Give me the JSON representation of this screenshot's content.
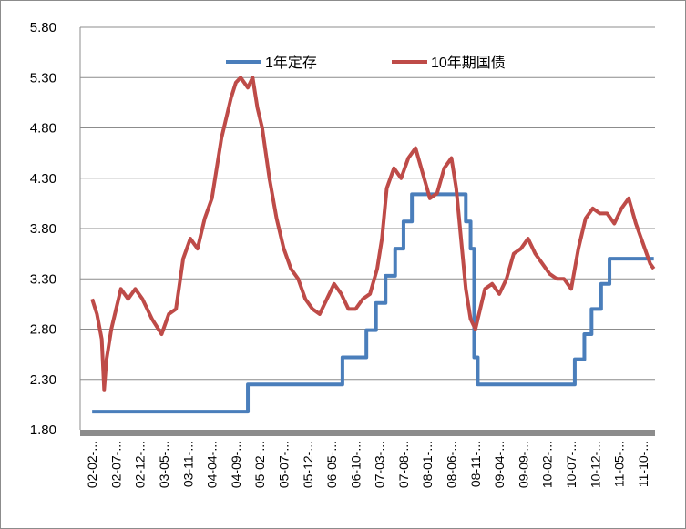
{
  "chart_data": {
    "type": "line",
    "title": "",
    "xlabel": "",
    "ylabel": "",
    "ylim": [
      1.8,
      5.8
    ],
    "y_ticks": [
      "1.80",
      "2.30",
      "2.80",
      "3.30",
      "3.80",
      "4.30",
      "4.80",
      "5.30",
      "5.80"
    ],
    "x_ticks": [
      "02-02-...",
      "02-07-...",
      "02-12-...",
      "03-05-...",
      "03-11-...",
      "04-04-...",
      "04-09-...",
      "05-02-...",
      "05-07-...",
      "05-12-...",
      "06-05-...",
      "06-10-...",
      "07-03-...",
      "07-08-...",
      "08-01-...",
      "08-06-...",
      "08-11-...",
      "09-04-...",
      "09-09-...",
      "10-02-...",
      "10-07-...",
      "10-12-...",
      "11-05-...",
      "11-10-..."
    ],
    "grid": "horizontal",
    "legend_position": "top",
    "series": [
      {
        "name": "1年定存",
        "color": "#4a7ebb",
        "step": true,
        "x": [
          0,
          6.5,
          10.45,
          11.45,
          11.85,
          12.25,
          12.65,
          13.0,
          13.35,
          13.7,
          14.7,
          15.6,
          15.8,
          15.95,
          16.1,
          20.15,
          20.55,
          20.85,
          21.25,
          21.6,
          22.4,
          23.45
        ],
        "values": [
          1.98,
          2.25,
          2.52,
          2.79,
          3.06,
          3.33,
          3.6,
          3.87,
          4.14,
          4.14,
          4.14,
          3.87,
          3.6,
          2.52,
          2.25,
          2.5,
          2.75,
          3.0,
          3.25,
          3.5,
          3.5,
          3.5
        ]
      },
      {
        "name": "10年期国债",
        "color": "#be4b48",
        "x": [
          0,
          0.2,
          0.4,
          0.5,
          0.6,
          0.8,
          1.0,
          1.2,
          1.5,
          1.8,
          2.1,
          2.5,
          2.9,
          3.2,
          3.5,
          3.8,
          4.1,
          4.4,
          4.7,
          5.0,
          5.2,
          5.4,
          5.6,
          5.8,
          6.0,
          6.2,
          6.5,
          6.7,
          6.9,
          7.1,
          7.4,
          7.7,
          8.0,
          8.3,
          8.6,
          8.9,
          9.2,
          9.5,
          9.8,
          10.1,
          10.4,
          10.7,
          11.0,
          11.3,
          11.6,
          11.9,
          12.1,
          12.3,
          12.6,
          12.9,
          13.2,
          13.5,
          13.8,
          14.1,
          14.4,
          14.7,
          15.0,
          15.2,
          15.4,
          15.6,
          15.8,
          16.0,
          16.2,
          16.4,
          16.7,
          17.0,
          17.3,
          17.6,
          17.9,
          18.2,
          18.5,
          18.8,
          19.1,
          19.4,
          19.7,
          20.0,
          20.3,
          20.6,
          20.9,
          21.2,
          21.5,
          21.8,
          22.1,
          22.4,
          22.7,
          23.0,
          23.3,
          23.45
        ],
        "values": [
          3.1,
          2.95,
          2.7,
          2.2,
          2.5,
          2.8,
          3.0,
          3.2,
          3.1,
          3.2,
          3.1,
          2.9,
          2.75,
          2.95,
          3.0,
          3.5,
          3.7,
          3.6,
          3.9,
          4.1,
          4.4,
          4.7,
          4.9,
          5.1,
          5.25,
          5.3,
          5.2,
          5.3,
          5.0,
          4.8,
          4.3,
          3.9,
          3.6,
          3.4,
          3.3,
          3.1,
          3.0,
          2.95,
          3.1,
          3.25,
          3.15,
          3.0,
          3.0,
          3.1,
          3.15,
          3.4,
          3.7,
          4.2,
          4.4,
          4.3,
          4.5,
          4.6,
          4.35,
          4.1,
          4.15,
          4.4,
          4.5,
          4.2,
          3.7,
          3.2,
          2.9,
          2.8,
          3.0,
          3.2,
          3.25,
          3.15,
          3.3,
          3.55,
          3.6,
          3.7,
          3.55,
          3.45,
          3.35,
          3.3,
          3.3,
          3.2,
          3.6,
          3.9,
          4.0,
          3.95,
          3.95,
          3.85,
          4.0,
          4.1,
          3.85,
          3.65,
          3.45,
          3.4
        ]
      }
    ]
  }
}
